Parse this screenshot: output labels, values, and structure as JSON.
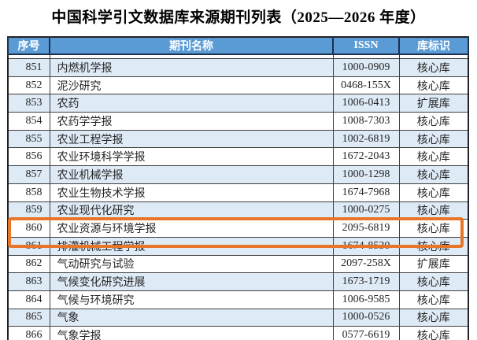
{
  "title": "中国科学引文数据库来源期刊列表（2025—2026 年度）",
  "table": {
    "headers": [
      "序号",
      "期刊名称",
      "ISSN",
      "库标识"
    ],
    "rows": [
      {
        "no": "851",
        "name": "内燃机学报",
        "issn": "1000-0909",
        "flag": "核心库"
      },
      {
        "no": "852",
        "name": "泥沙研究",
        "issn": "0468-155X",
        "flag": "核心库"
      },
      {
        "no": "853",
        "name": "农药",
        "issn": "1006-0413",
        "flag": "扩展库"
      },
      {
        "no": "854",
        "name": "农药学学报",
        "issn": "1008-7303",
        "flag": "核心库"
      },
      {
        "no": "855",
        "name": "农业工程学报",
        "issn": "1002-6819",
        "flag": "核心库"
      },
      {
        "no": "856",
        "name": "农业环境科学学报",
        "issn": "1672-2043",
        "flag": "核心库"
      },
      {
        "no": "857",
        "name": "农业机械学报",
        "issn": "1000-1298",
        "flag": "核心库"
      },
      {
        "no": "858",
        "name": "农业生物技术学报",
        "issn": "1674-7968",
        "flag": "核心库"
      },
      {
        "no": "859",
        "name": "农业现代化研究",
        "issn": "1000-0275",
        "flag": "核心库"
      },
      {
        "no": "860",
        "name": "农业资源与环境学报",
        "issn": "2095-6819",
        "flag": "核心库"
      },
      {
        "no": "861",
        "name": "排灌机械工程学报",
        "issn": "1674-8530",
        "flag": "核心库"
      },
      {
        "no": "862",
        "name": "气动研究与试验",
        "issn": "2097-258X",
        "flag": "扩展库"
      },
      {
        "no": "863",
        "name": "气候变化研究进展",
        "issn": "1673-1719",
        "flag": "核心库"
      },
      {
        "no": "864",
        "name": "气候与环境研究",
        "issn": "1006-9585",
        "flag": "核心库"
      },
      {
        "no": "865",
        "name": "气象",
        "issn": "1000-0526",
        "flag": "核心库"
      },
      {
        "no": "866",
        "name": "气象学报",
        "issn": "0577-6619",
        "flag": "核心库"
      }
    ]
  },
  "highlight": {
    "highlighted_row_no": "861",
    "border_color": "#E8762A"
  },
  "colors": {
    "header_bg": "#5B9BD5",
    "header_text": "#ffffff",
    "row_alt_bg": "#DEEAF6",
    "row_bg": "#ffffff",
    "body_text": "#262626"
  }
}
